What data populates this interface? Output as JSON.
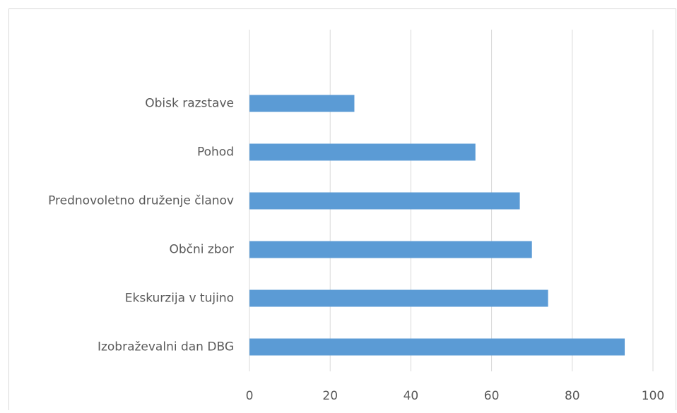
{
  "chart_data": {
    "type": "barh",
    "categories": [
      "Obisk razstave",
      "Pohod",
      "Prednovoletno druženje članov",
      "Občni zbor",
      "Ekskurzija v tujino",
      "Izobraževalni dan DBG"
    ],
    "values": [
      26,
      56,
      67,
      70,
      74,
      93
    ],
    "color": "#5b9bd5",
    "xlim": [
      0,
      100
    ],
    "xticks": [
      0,
      20,
      40,
      60,
      80,
      100
    ],
    "grid": true
  }
}
